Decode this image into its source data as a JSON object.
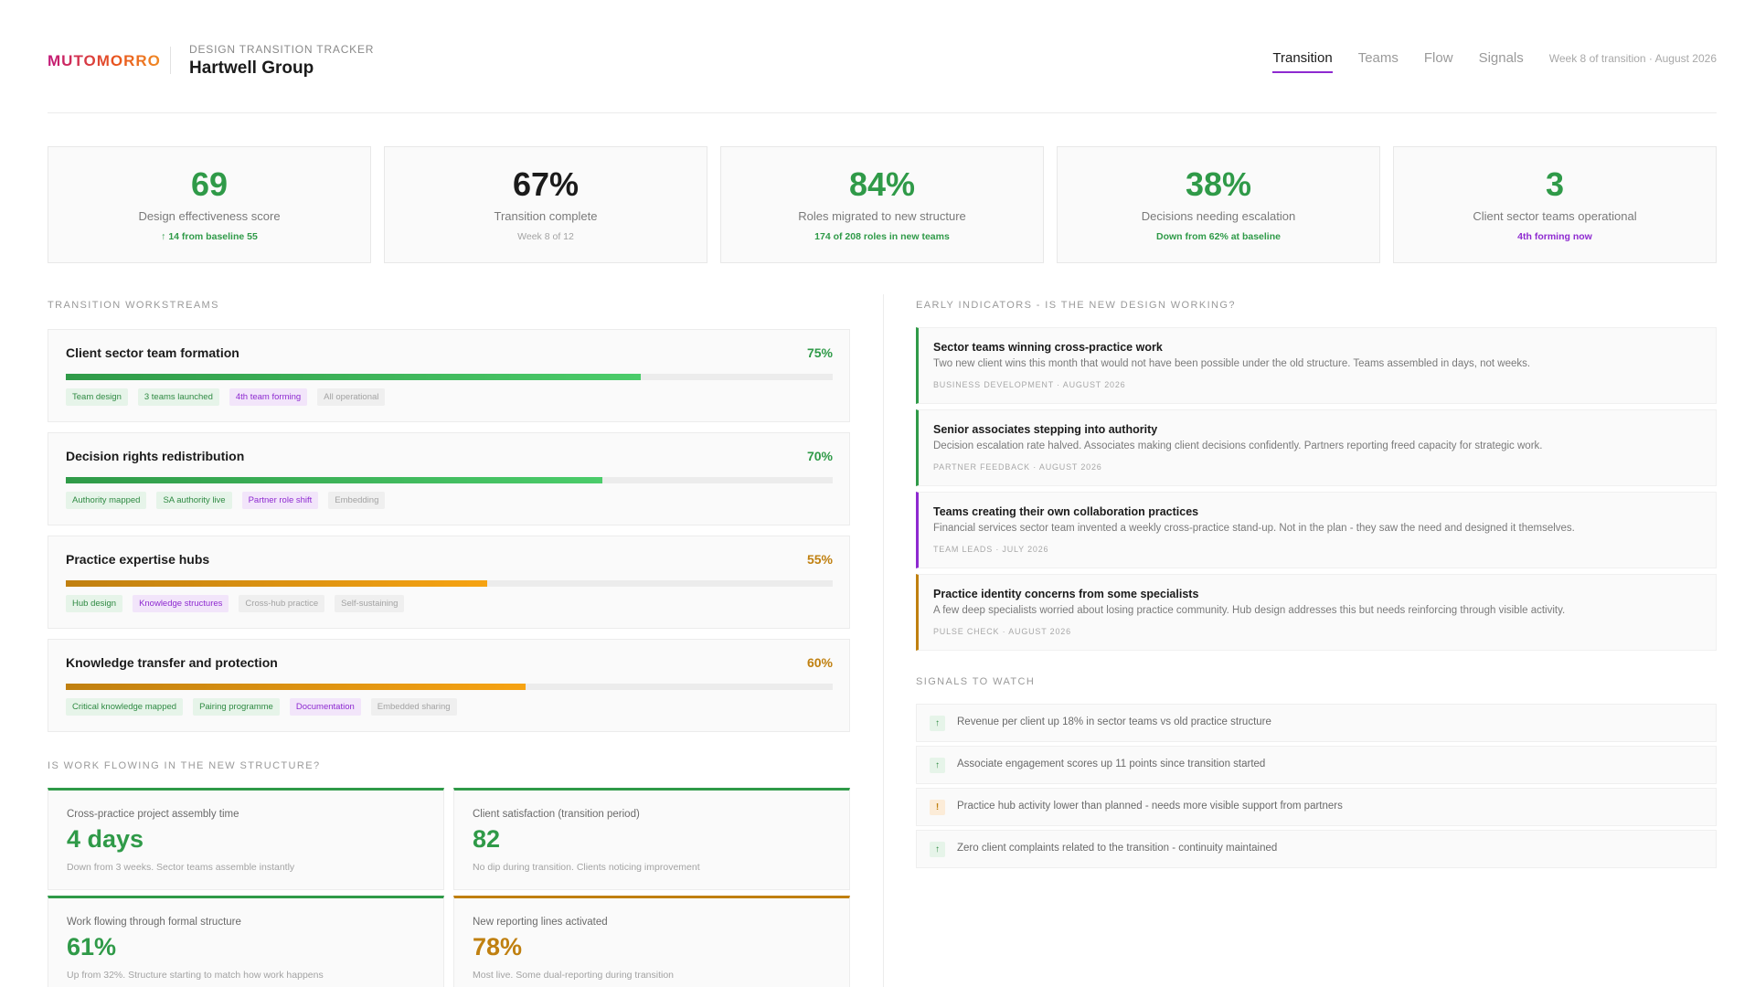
{
  "header": {
    "brand": "MUTOMORRO",
    "tracker_label": "DESIGN TRANSITION TRACKER",
    "client_name": "Hartwell Group",
    "tabs": [
      {
        "label": "Transition"
      },
      {
        "label": "Teams"
      },
      {
        "label": "Flow"
      },
      {
        "label": "Signals"
      }
    ],
    "week_info": "Week 8 of transition · August 2026"
  },
  "kpis": [
    {
      "value": "69",
      "label": "Design effectiveness score",
      "sub": "↑ 14 from baseline 55"
    },
    {
      "value": "67%",
      "label": "Transition complete",
      "sub": "Week 8 of 12"
    },
    {
      "value": "84%",
      "label": "Roles migrated to new structure",
      "sub": "174 of 208 roles in new teams"
    },
    {
      "value": "38%",
      "label": "Decisions needing escalation",
      "sub": "Down from 62% at baseline"
    },
    {
      "value": "3",
      "label": "Client sector teams operational",
      "sub": "4th forming now"
    }
  ],
  "workstreams": {
    "label": "TRANSITION WORKSTREAMS",
    "items": [
      {
        "title": "Client sector team formation",
        "percent": 75,
        "percent_label": "75%",
        "tags": [
          "Team design",
          "3 teams launched",
          "4th team forming",
          "All operational"
        ]
      },
      {
        "title": "Decision rights redistribution",
        "percent": 70,
        "percent_label": "70%",
        "tags": [
          "Authority mapped",
          "SA authority live",
          "Partner role shift",
          "Embedding"
        ]
      },
      {
        "title": "Practice expertise hubs",
        "percent": 55,
        "percent_label": "55%",
        "tags": [
          "Hub design",
          "Knowledge structures",
          "Cross-hub practice",
          "Self-sustaining"
        ]
      },
      {
        "title": "Knowledge transfer and protection",
        "percent": 60,
        "percent_label": "60%",
        "tags": [
          "Critical knowledge mapped",
          "Pairing programme",
          "Documentation",
          "Embedded sharing"
        ]
      }
    ]
  },
  "flow": {
    "label": "IS WORK FLOWING IN THE NEW STRUCTURE?",
    "cards": [
      {
        "label": "Cross-practice project assembly time",
        "value": "4 days",
        "sub": "Down from 3 weeks. Sector teams assemble instantly"
      },
      {
        "label": "Client satisfaction (transition period)",
        "value": "82",
        "sub": "No dip during transition. Clients noticing improvement"
      },
      {
        "label": "Work flowing through formal structure",
        "value": "61%",
        "sub": "Up from 32%. Structure starting to match how work happens"
      },
      {
        "label": "New reporting lines activated",
        "value": "78%",
        "sub": "Most live. Some dual-reporting during transition"
      }
    ]
  },
  "indicators": {
    "label": "EARLY INDICATORS - IS THE NEW DESIGN WORKING?",
    "items": [
      {
        "title": "Sector teams winning cross-practice work",
        "body": "Two new client wins this month that would not have been possible under the old structure. Teams assembled in days, not weeks.",
        "meta": "BUSINESS DEVELOPMENT · AUGUST 2026"
      },
      {
        "title": "Senior associates stepping into authority",
        "body": "Decision escalation rate halved. Associates making client decisions confidently. Partners reporting freed capacity for strategic work.",
        "meta": "PARTNER FEEDBACK · AUGUST 2026"
      },
      {
        "title": "Teams creating their own collaboration practices",
        "body": "Financial services sector team invented a weekly cross-practice stand-up. Not in the plan - they saw the need and designed it themselves.",
        "meta": "TEAM LEADS · JULY 2026"
      },
      {
        "title": "Practice identity concerns from some specialists",
        "body": "A few deep specialists worried about losing practice community. Hub design addresses this but needs reinforcing through visible activity.",
        "meta": "PULSE CHECK · AUGUST 2026"
      }
    ]
  },
  "signals": {
    "label": "SIGNALS TO WATCH",
    "items": [
      {
        "icon": "↑",
        "text": "Revenue per client up 18% in sector teams vs old practice structure"
      },
      {
        "icon": "↑",
        "text": "Associate engagement scores up 11 points since transition started"
      },
      {
        "icon": "!",
        "text": "Practice hub activity lower than planned - needs more visible support from partners"
      },
      {
        "icon": "↑",
        "text": "Zero client complaints related to the transition - continuity maintained"
      }
    ]
  }
}
